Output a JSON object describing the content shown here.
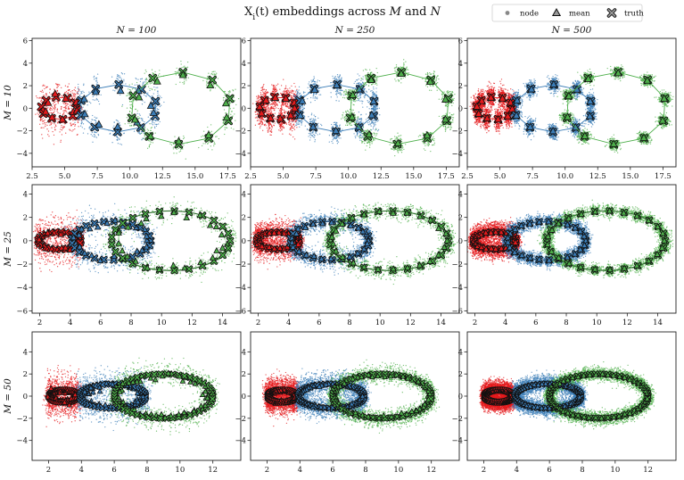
{
  "chart_data": {
    "type": "scatter",
    "title": "X_i(t) embeddings across M and N",
    "title_parts": [
      "X",
      "i",
      "(t) embeddings across ",
      "M",
      " and ",
      "N"
    ],
    "legend": {
      "placement": "top-right",
      "entries": [
        {
          "label": "node",
          "marker": "dot"
        },
        {
          "label": "mean",
          "marker": "triangle"
        },
        {
          "label": "truth",
          "marker": "x"
        }
      ]
    },
    "colors": {
      "red": "#e41a1c",
      "blue": "#3b7db7",
      "green": "#4daf4a"
    },
    "column_labels": [
      "N = 100",
      "N = 250",
      "N = 500"
    ],
    "row_labels": [
      "M = 10",
      "M = 25",
      "M = 50"
    ],
    "rows": [
      {
        "M": 10,
        "xlim": [
          2.5,
          18.5
        ],
        "ylim": [
          -5.2,
          6.2
        ],
        "xticks": [
          2.5,
          5.0,
          7.5,
          10.0,
          12.5,
          15.0,
          17.5
        ],
        "xtick_labels": [
          "2.5",
          "5.0",
          "7.5",
          "10.0",
          "12.5",
          "15.0",
          "17.5"
        ],
        "yticks": [
          -4,
          -2,
          0,
          2,
          4,
          6
        ],
        "ytick_labels": [
          "−4",
          "−2",
          "0",
          "2",
          "4",
          "6"
        ],
        "series": [
          {
            "name": "red",
            "cx": 4.6,
            "cy": 0,
            "rx": 1.4,
            "ry": 1.0,
            "phase": 0.5,
            "n": 10
          },
          {
            "name": "blue",
            "cx": 9.1,
            "cy": 0,
            "rx": 3.0,
            "ry": 2.1,
            "phase": 0.3,
            "n": 10
          },
          {
            "name": "green",
            "cx": 13.9,
            "cy": 0,
            "rx": 3.9,
            "ry": 3.2,
            "phase": 0.9,
            "n": 10
          }
        ],
        "spread_x": [
          0.15,
          0.18,
          0.22
        ],
        "spread_y": [
          0.8,
          0.6,
          0.45
        ]
      },
      {
        "M": 25,
        "xlim": [
          1.5,
          15.2
        ],
        "ylim": [
          -6.2,
          4.8
        ],
        "xticks": [
          2,
          4,
          6,
          8,
          10,
          12,
          14
        ],
        "xtick_labels": [
          "2",
          "4",
          "6",
          "8",
          "10",
          "12",
          "14"
        ],
        "yticks": [
          -6,
          -4,
          -2,
          0,
          2,
          4
        ],
        "ytick_labels": [
          "−6",
          "−4",
          "−2",
          "0",
          "2",
          "4"
        ],
        "series": [
          {
            "name": "red",
            "cx": 3.3,
            "cy": 0,
            "rx": 1.4,
            "ry": 0.75,
            "phase": 0.0,
            "n": 25
          },
          {
            "name": "blue",
            "cx": 6.7,
            "cy": 0,
            "rx": 2.6,
            "ry": 1.65,
            "phase": 0.0,
            "n": 25
          },
          {
            "name": "green",
            "cx": 10.6,
            "cy": 0,
            "rx": 3.9,
            "ry": 2.55,
            "phase": 0.0,
            "n": 25
          }
        ],
        "spread_x": [
          0.14,
          0.16,
          0.2
        ],
        "spread_y": [
          0.75,
          0.55,
          0.45
        ]
      },
      {
        "M": 50,
        "xlim": [
          1.0,
          13.7
        ],
        "ylim": [
          -5.8,
          5.8
        ],
        "xticks": [
          2,
          4,
          6,
          8,
          10,
          12
        ],
        "xtick_labels": [
          "2",
          "4",
          "6",
          "8",
          "10",
          "12"
        ],
        "yticks": [
          -4,
          -2,
          0,
          2,
          4
        ],
        "ytick_labels": [
          "−4",
          "−2",
          "0",
          "2",
          "4"
        ],
        "series": [
          {
            "name": "red",
            "cx": 2.9,
            "cy": 0,
            "rx": 0.85,
            "ry": 0.55,
            "phase": 0.0,
            "n": 50
          },
          {
            "name": "blue",
            "cx": 5.9,
            "cy": 0,
            "rx": 2.0,
            "ry": 1.1,
            "phase": 0.0,
            "n": 50
          },
          {
            "name": "green",
            "cx": 9.0,
            "cy": 0,
            "rx": 3.0,
            "ry": 2.0,
            "phase": 0.0,
            "n": 50
          }
        ],
        "spread_x": [
          0.12,
          0.14,
          0.16
        ],
        "spread_y": [
          0.8,
          0.7,
          0.55
        ]
      }
    ],
    "columns_N": [
      100,
      250,
      500
    ],
    "noise_scale_by_column": [
      1.0,
      0.75,
      0.55
    ],
    "mean_offset_by_column": [
      0.28,
      0.12,
      0.05
    ]
  }
}
